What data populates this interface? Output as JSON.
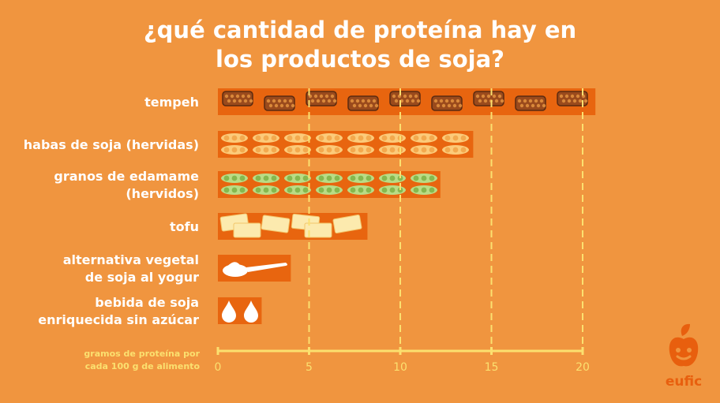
{
  "title_line1": "¿qué cantidad de proteína hay en",
  "title_line2": "los productos de soja?",
  "chart_data": {
    "type": "bar",
    "orientation": "horizontal",
    "categories": [
      [
        "tempeh"
      ],
      [
        "habas de soja (hervidas)"
      ],
      [
        "granos de edamame",
        "(hervidos)"
      ],
      [
        "tofu"
      ],
      [
        "alternativa vegetal",
        "de soja al yogur"
      ],
      [
        "bebida de soja",
        "enriquecida sin azúcar"
      ]
    ],
    "values": [
      20.7,
      14,
      12.2,
      8.2,
      4,
      2.4
    ],
    "icons": [
      "tempeh-icon",
      "soybean-pod-icon",
      "edamame-pod-icon",
      "tofu-block-icon",
      "spoon-icon",
      "drop-icon"
    ],
    "xlabel": [
      "gramos de proteína por",
      "cada 100 g de alimento"
    ],
    "xticks": [
      "0",
      "5",
      "10",
      "15",
      "20"
    ],
    "xlim": [
      0,
      20
    ],
    "grid": true,
    "colors": {
      "background": "#F0953F",
      "bar": "#E8650F",
      "axis": "#FBE06F",
      "label": "#FFFFFF",
      "tempeh": "#9A4A1C",
      "soybean": "#FCCB7A",
      "edamame": "#B9DC86",
      "tofu": "#FCEAAE"
    }
  },
  "logo": {
    "text": "eufic",
    "icon": "apple-face-icon"
  }
}
